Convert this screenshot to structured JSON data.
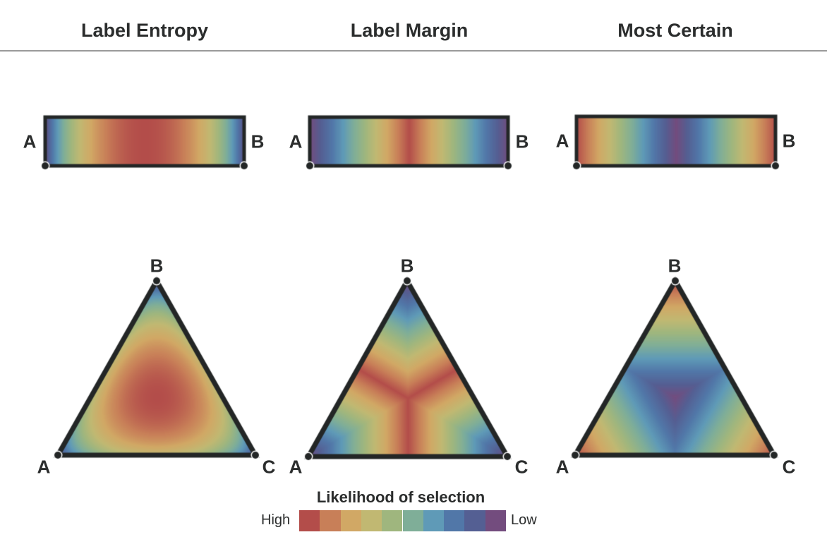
{
  "panels": [
    {
      "title": "Label Entropy",
      "metric": "entropy"
    },
    {
      "title": "Label Margin",
      "metric": "margin"
    },
    {
      "title": "Most Certain",
      "metric": "certain"
    }
  ],
  "vertex_labels": {
    "a": "A",
    "b": "B",
    "c": "C"
  },
  "legend": {
    "title": "Likelihood of selection",
    "high": "High",
    "low": "Low",
    "colors": [
      "#b34d4a",
      "#c87f58",
      "#d1a865",
      "#c1b872",
      "#9fb67e",
      "#7fae98",
      "#5f9ab7",
      "#5177a8",
      "#545f93",
      "#734c7e"
    ]
  }
}
